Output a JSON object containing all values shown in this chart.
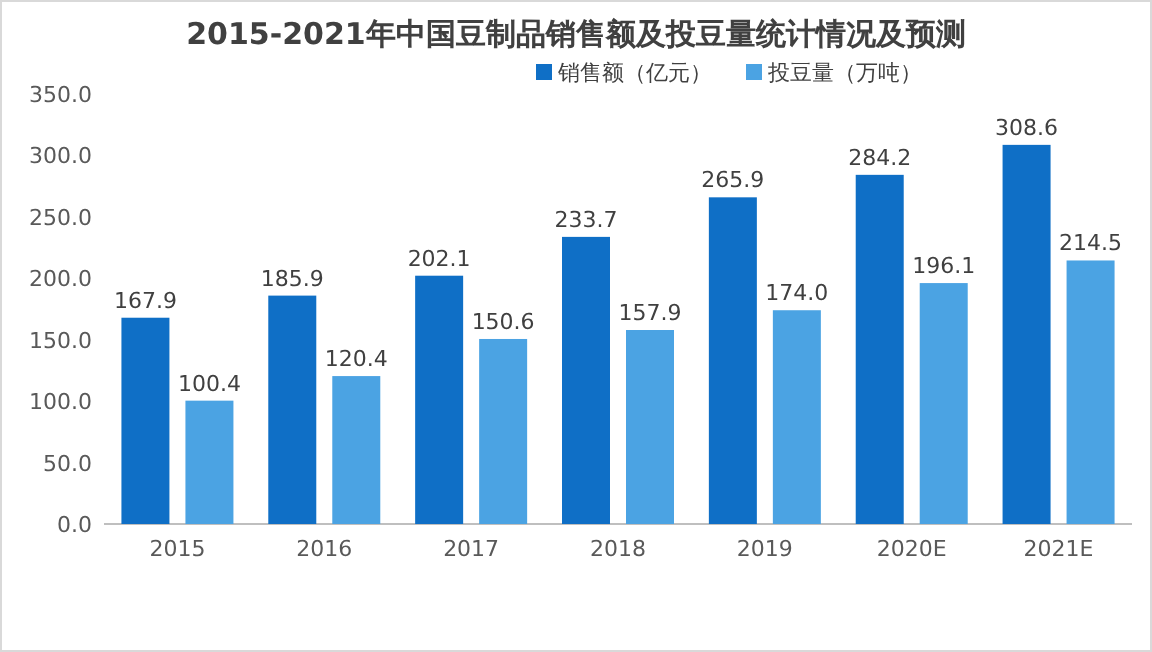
{
  "chart_data": {
    "type": "bar",
    "title": "2015-2021年中国豆制品销售额及投豆量统计情况及预测",
    "categories": [
      "2015",
      "2016",
      "2017",
      "2018",
      "2019",
      "2020E",
      "2021E"
    ],
    "series": [
      {
        "name": "销售额（亿元）",
        "color": "#0f6fc6",
        "values": [
          167.9,
          185.9,
          202.1,
          233.7,
          265.9,
          284.2,
          308.6
        ],
        "value_labels": [
          "167.9",
          "185.9",
          "202.1",
          "233.7",
          "265.9",
          "284.2",
          "308.6"
        ]
      },
      {
        "name": "投豆量（万吨）",
        "color": "#4ba3e3",
        "values": [
          100.4,
          120.4,
          150.6,
          157.9,
          174.0,
          196.1,
          214.5
        ],
        "value_labels": [
          "100.4",
          "120.4",
          "150.6",
          "157.9",
          "174.0",
          "196.1",
          "214.5"
        ]
      }
    ],
    "ylim": [
      0,
      350
    ],
    "yticks": [
      {
        "value": 0,
        "label": "0.0"
      },
      {
        "value": 50,
        "label": "50.0"
      },
      {
        "value": 100,
        "label": "100.0"
      },
      {
        "value": 150,
        "label": "150.0"
      },
      {
        "value": 200,
        "label": "200.0"
      },
      {
        "value": 250,
        "label": "250.0"
      },
      {
        "value": 300,
        "label": "300.0"
      },
      {
        "value": 350,
        "label": "350.0"
      }
    ],
    "legend": "top"
  }
}
